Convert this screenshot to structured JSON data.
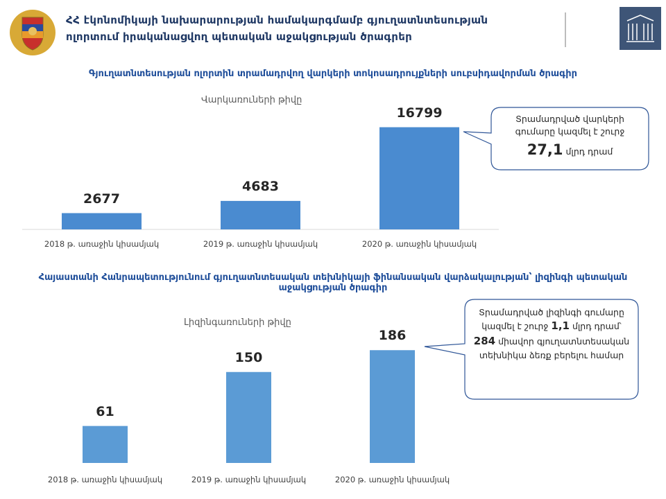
{
  "header": {
    "title_lines": [
      "ՀՀ էկոնոմիկայի նախարարության համակարգմամբ գյուղատնտեսության",
      "ոլորտում իրականացվող պետական աջակցության ծրագրեր"
    ]
  },
  "chart_data": [
    {
      "type": "bar",
      "title": "Գյուղատնտեսության ոլորտին տրամադրվող վարկերի տոկոսադրույքների սուբսիդավորման ծրագիր",
      "subtitle": "Վարկառուների թիվը",
      "categories": [
        "2018 թ. առաջին կիսամյակ",
        "2019 թ. առաջին կիսամյակ",
        "2020 թ. առաջին կիսամյակ"
      ],
      "values": [
        2677,
        4683,
        16799
      ],
      "color": "#4a8bd0",
      "ylim": [
        0,
        18000
      ],
      "annotation": [
        {
          "text": "Տրամադրված վարկերի գումարը կազմել է շուրջ",
          "emphasis": false
        },
        {
          "text": "27,1",
          "emphasis": true
        },
        {
          "text": "մլրդ դրամ",
          "emphasis": false
        }
      ]
    },
    {
      "type": "bar",
      "title": "Հայաստանի Հանրապետությունում գյուղատնտեսական տեխնիկայի ֆինանսական վարձակալության՝ լիզինգի պետական աջակցության ծրագիր",
      "subtitle": "Լիզինգառուների թիվը",
      "categories": [
        "2018 թ. առաջին կիսամյակ",
        "2019 թ. առաջին կիսամյակ",
        "2020 թ. առաջին կիսամյակ"
      ],
      "values": [
        61,
        150,
        186
      ],
      "color": "#5b9bd5",
      "ylim": [
        0,
        200
      ],
      "annotation": [
        {
          "text": "Տրամադրված լիզինգի գումարը կազմել է շուրջ",
          "emphasis": false
        },
        {
          "text": "1,1",
          "emphasis": true
        },
        {
          "text": "մլրդ դրամ՝",
          "emphasis": false
        },
        {
          "text": "284",
          "emphasis": true
        },
        {
          "text": "միավոր գյուղատնտեսական տեխնիկա ձեռք բերելու համար",
          "emphasis": false
        }
      ]
    }
  ]
}
